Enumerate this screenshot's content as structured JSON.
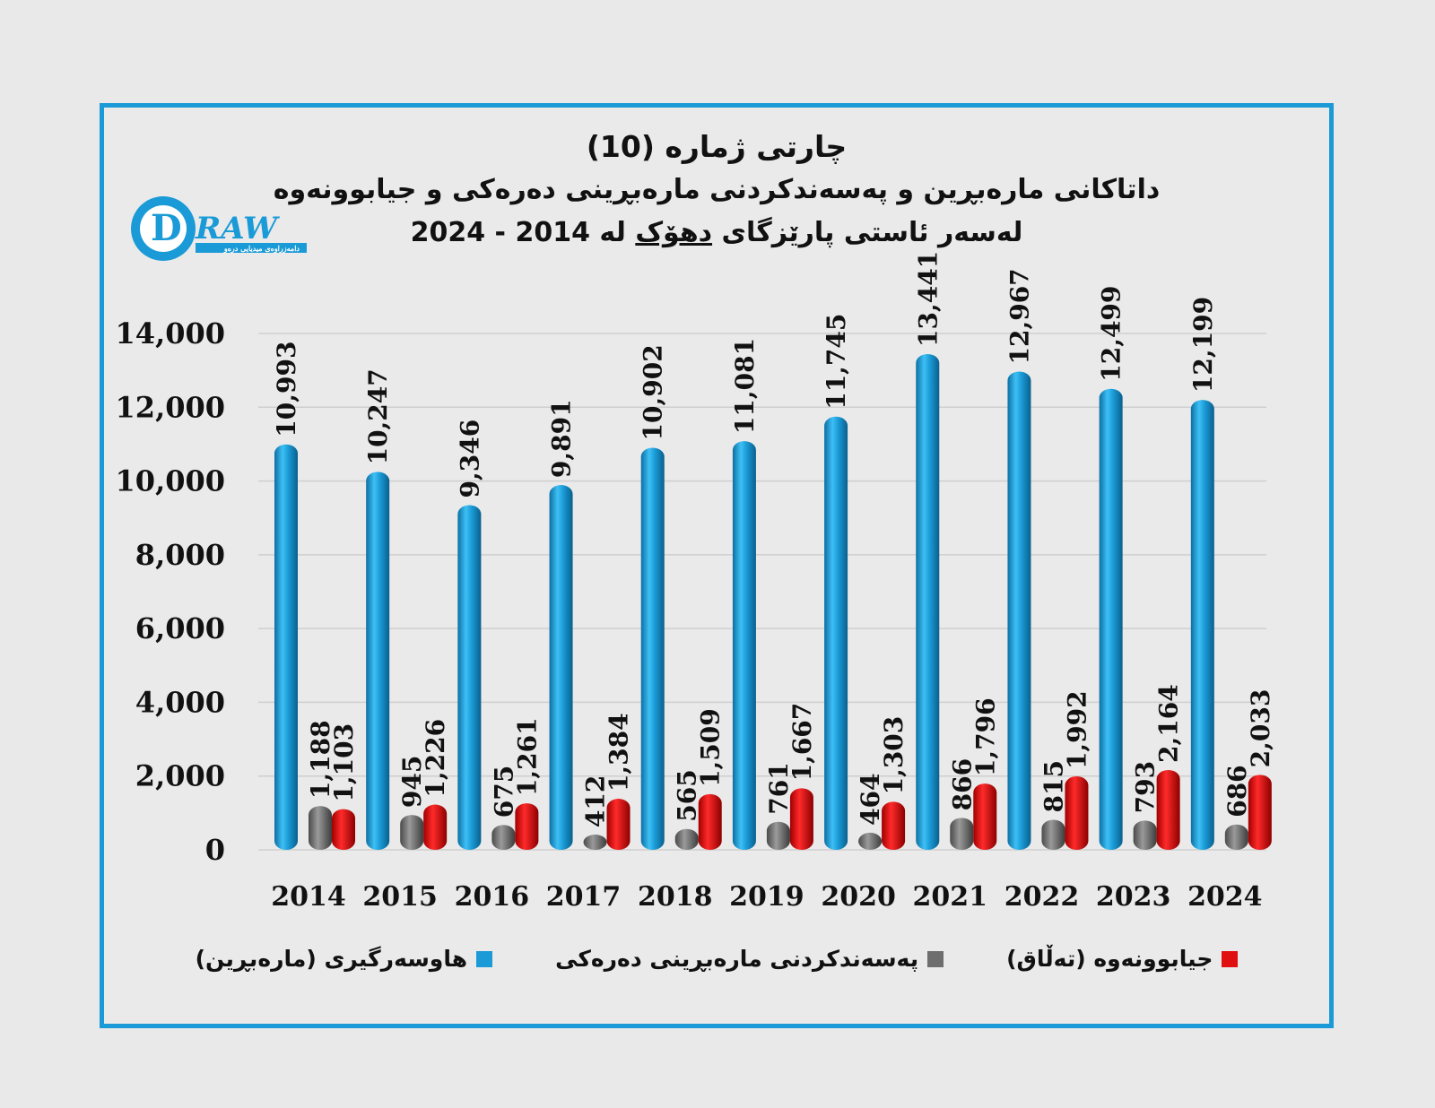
{
  "title": {
    "line1": "چارتی ژمارە (10)",
    "line2": "داتاکانی مارەبڕین و پەسەندکردنی مارەبڕینی دەرەکی و جیابوونەوە",
    "line3_prefix": "لەسەر ئاستی پارێزگای",
    "line3_city": "دهۆک",
    "line3_suffix": "لە 2014 - 2024"
  },
  "logo": {
    "text": "RAW",
    "letter": "D",
    "tagline": "دامەزراوەی میدیایی درەو"
  },
  "colors": {
    "marriage": "#1a9ad6",
    "foreign": "#6e6e6e",
    "divorce": "#e01010",
    "border": "#1a9ad6"
  },
  "chart_data": {
    "type": "bar",
    "categories": [
      "2014",
      "2015",
      "2016",
      "2017",
      "2018",
      "2019",
      "2020",
      "2021",
      "2022",
      "2023",
      "2024"
    ],
    "series": [
      {
        "name": "هاوسەرگیری (مارەبڕین)",
        "values": [
          10993,
          10247,
          9346,
          9891,
          10902,
          11081,
          11745,
          13441,
          12967,
          12499,
          12199
        ]
      },
      {
        "name": "پەسەندکردنی مارەبڕینی دەرەکی",
        "values": [
          1188,
          945,
          675,
          412,
          565,
          761,
          464,
          866,
          815,
          793,
          686
        ]
      },
      {
        "name": "جیابوونەوە (تەڵاق)",
        "values": [
          1103,
          1226,
          1261,
          1384,
          1509,
          1667,
          1303,
          1796,
          1992,
          2164,
          2033
        ]
      }
    ],
    "ylim": [
      0,
      14000
    ],
    "yticks": [
      "0",
      "2,000",
      "4,000",
      "6,000",
      "8,000",
      "10,000",
      "12,000",
      "14,000"
    ],
    "value_labels": [
      [
        "10,993",
        "10,247",
        "9,346",
        "9,891",
        "10,902",
        "11,081",
        "11,745",
        "13,441",
        "12,967",
        "12,499",
        "12,199"
      ],
      [
        "1,188",
        "945",
        "675",
        "412",
        "565",
        "761",
        "464",
        "866",
        "815",
        "793",
        "686"
      ],
      [
        "1,103",
        "1,226",
        "1,261",
        "1,384",
        "1,509",
        "1,667",
        "1,303",
        "1,796",
        "1,992",
        "2,164",
        "2,033"
      ]
    ],
    "grid": true,
    "legend_position": "bottom"
  }
}
